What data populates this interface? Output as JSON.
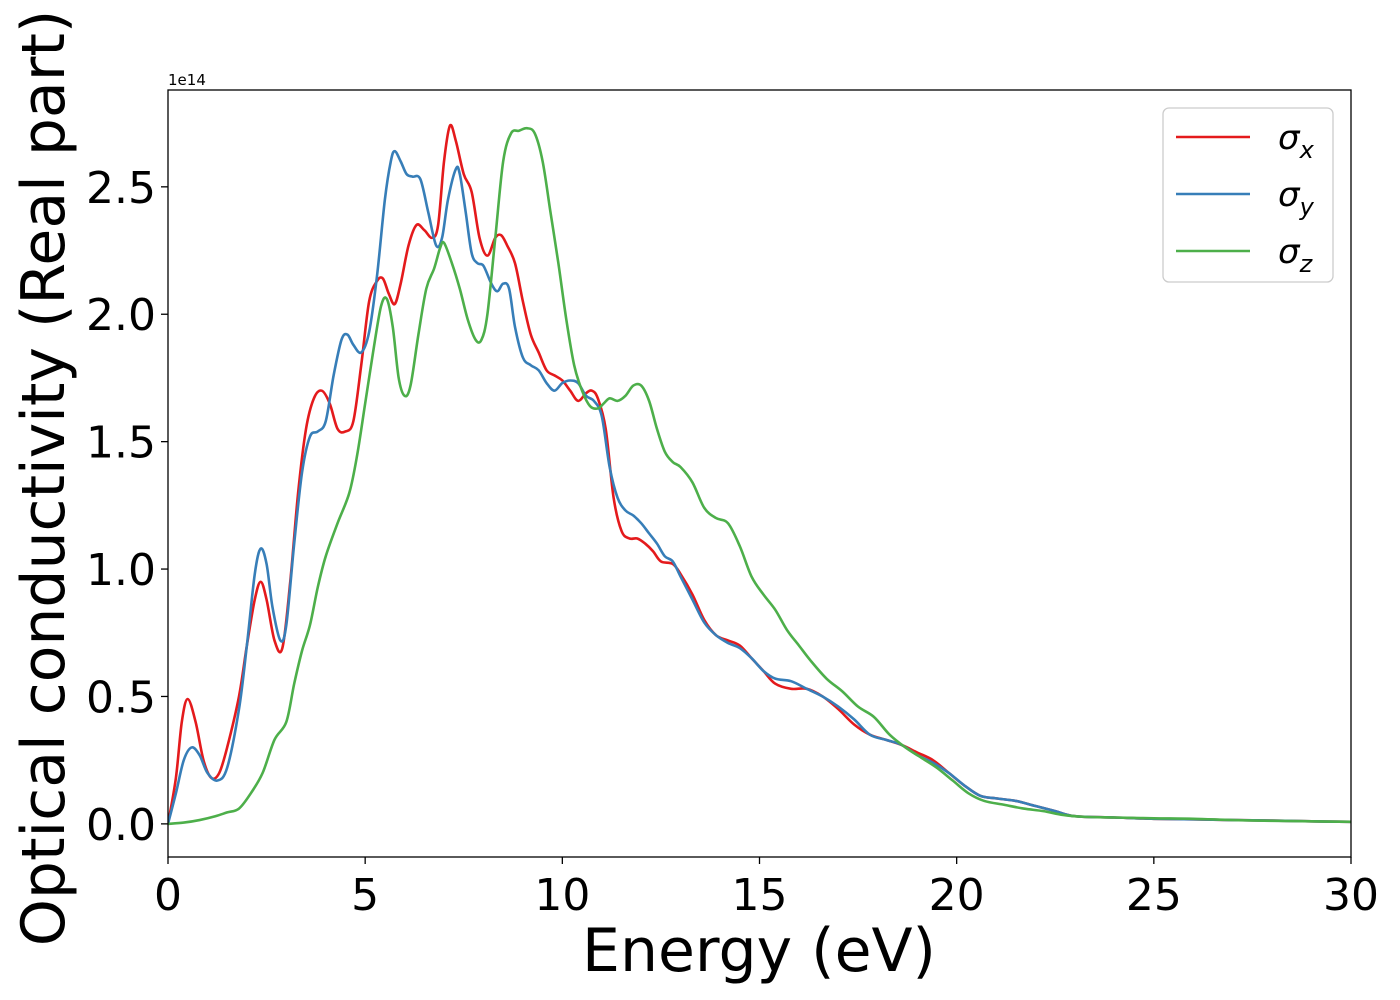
{
  "chart_data": {
    "type": "line",
    "title": "",
    "xlabel": "Energy (eV)",
    "ylabel": "Optical conductivity (Real part)",
    "y_offset_label": "1e14",
    "xlim": [
      0,
      30
    ],
    "ylim": [
      -0.13,
      2.88
    ],
    "xticks": [
      0,
      5,
      10,
      15,
      20,
      25,
      30
    ],
    "xtick_labels": [
      "0",
      "5",
      "10",
      "15",
      "20",
      "25",
      "30"
    ],
    "yticks": [
      0.0,
      0.5,
      1.0,
      1.5,
      2.0,
      2.5
    ],
    "ytick_labels": [
      "0.0",
      "0.5",
      "1.0",
      "1.5",
      "2.0",
      "2.5"
    ],
    "grid": false,
    "legend_position": "top-right",
    "series": [
      {
        "name": "σx",
        "symbol": "σ",
        "subscript": "x",
        "color": "#e41a1c",
        "points": [
          [
            0,
            0
          ],
          [
            0.2,
            0.18
          ],
          [
            0.35,
            0.4
          ],
          [
            0.5,
            0.49
          ],
          [
            0.7,
            0.4
          ],
          [
            0.9,
            0.25
          ],
          [
            1.1,
            0.18
          ],
          [
            1.3,
            0.2
          ],
          [
            1.5,
            0.3
          ],
          [
            1.8,
            0.5
          ],
          [
            2.0,
            0.7
          ],
          [
            2.2,
            0.88
          ],
          [
            2.35,
            0.95
          ],
          [
            2.5,
            0.88
          ],
          [
            2.7,
            0.72
          ],
          [
            2.9,
            0.69
          ],
          [
            3.1,
            0.95
          ],
          [
            3.3,
            1.3
          ],
          [
            3.5,
            1.55
          ],
          [
            3.7,
            1.67
          ],
          [
            3.9,
            1.7
          ],
          [
            4.1,
            1.65
          ],
          [
            4.3,
            1.55
          ],
          [
            4.5,
            1.54
          ],
          [
            4.7,
            1.58
          ],
          [
            4.9,
            1.8
          ],
          [
            5.1,
            2.05
          ],
          [
            5.3,
            2.13
          ],
          [
            5.45,
            2.14
          ],
          [
            5.6,
            2.08
          ],
          [
            5.75,
            2.04
          ],
          [
            5.9,
            2.12
          ],
          [
            6.1,
            2.27
          ],
          [
            6.3,
            2.35
          ],
          [
            6.5,
            2.33
          ],
          [
            6.7,
            2.3
          ],
          [
            6.85,
            2.35
          ],
          [
            7.0,
            2.6
          ],
          [
            7.15,
            2.74
          ],
          [
            7.3,
            2.68
          ],
          [
            7.5,
            2.55
          ],
          [
            7.7,
            2.48
          ],
          [
            7.9,
            2.3
          ],
          [
            8.1,
            2.23
          ],
          [
            8.3,
            2.3
          ],
          [
            8.45,
            2.31
          ],
          [
            8.6,
            2.27
          ],
          [
            8.8,
            2.2
          ],
          [
            9.0,
            2.05
          ],
          [
            9.2,
            1.92
          ],
          [
            9.4,
            1.85
          ],
          [
            9.6,
            1.78
          ],
          [
            9.8,
            1.76
          ],
          [
            10.0,
            1.74
          ],
          [
            10.2,
            1.7
          ],
          [
            10.4,
            1.66
          ],
          [
            10.6,
            1.69
          ],
          [
            10.75,
            1.7
          ],
          [
            10.9,
            1.67
          ],
          [
            11.1,
            1.55
          ],
          [
            11.3,
            1.28
          ],
          [
            11.5,
            1.15
          ],
          [
            11.7,
            1.12
          ],
          [
            11.9,
            1.12
          ],
          [
            12.1,
            1.1
          ],
          [
            12.3,
            1.07
          ],
          [
            12.5,
            1.03
          ],
          [
            12.8,
            1.02
          ],
          [
            13.0,
            0.98
          ],
          [
            13.3,
            0.9
          ],
          [
            13.6,
            0.8
          ],
          [
            13.9,
            0.74
          ],
          [
            14.2,
            0.72
          ],
          [
            14.5,
            0.7
          ],
          [
            14.8,
            0.65
          ],
          [
            15.1,
            0.6
          ],
          [
            15.4,
            0.55
          ],
          [
            15.8,
            0.53
          ],
          [
            16.2,
            0.53
          ],
          [
            16.6,
            0.5
          ],
          [
            17.0,
            0.45
          ],
          [
            17.4,
            0.39
          ],
          [
            17.8,
            0.35
          ],
          [
            18.2,
            0.33
          ],
          [
            18.6,
            0.31
          ],
          [
            19.0,
            0.28
          ],
          [
            19.4,
            0.25
          ],
          [
            19.8,
            0.2
          ],
          [
            20.2,
            0.15
          ],
          [
            20.6,
            0.11
          ],
          [
            21.0,
            0.1
          ],
          [
            21.5,
            0.09
          ],
          [
            22.0,
            0.07
          ],
          [
            22.5,
            0.05
          ],
          [
            23.0,
            0.03
          ],
          [
            24.0,
            0.025
          ],
          [
            25.0,
            0.02
          ],
          [
            26.0,
            0.018
          ],
          [
            27.0,
            0.015
          ],
          [
            28.0,
            0.013
          ],
          [
            29.0,
            0.01
          ],
          [
            30.0,
            0.008
          ]
        ]
      },
      {
        "name": "σy",
        "symbol": "σ",
        "subscript": "y",
        "color": "#377eb8",
        "points": [
          [
            0,
            0
          ],
          [
            0.2,
            0.12
          ],
          [
            0.4,
            0.25
          ],
          [
            0.6,
            0.3
          ],
          [
            0.8,
            0.27
          ],
          [
            1.0,
            0.2
          ],
          [
            1.25,
            0.17
          ],
          [
            1.5,
            0.22
          ],
          [
            1.8,
            0.45
          ],
          [
            2.0,
            0.7
          ],
          [
            2.2,
            0.98
          ],
          [
            2.35,
            1.08
          ],
          [
            2.5,
            1.02
          ],
          [
            2.65,
            0.85
          ],
          [
            2.85,
            0.72
          ],
          [
            3.0,
            0.78
          ],
          [
            3.2,
            1.1
          ],
          [
            3.4,
            1.38
          ],
          [
            3.6,
            1.52
          ],
          [
            3.8,
            1.54
          ],
          [
            4.0,
            1.58
          ],
          [
            4.2,
            1.76
          ],
          [
            4.4,
            1.9
          ],
          [
            4.55,
            1.92
          ],
          [
            4.7,
            1.88
          ],
          [
            4.9,
            1.85
          ],
          [
            5.1,
            1.93
          ],
          [
            5.3,
            2.15
          ],
          [
            5.5,
            2.45
          ],
          [
            5.65,
            2.6
          ],
          [
            5.75,
            2.64
          ],
          [
            5.9,
            2.6
          ],
          [
            6.05,
            2.55
          ],
          [
            6.2,
            2.54
          ],
          [
            6.4,
            2.53
          ],
          [
            6.6,
            2.4
          ],
          [
            6.8,
            2.27
          ],
          [
            6.95,
            2.3
          ],
          [
            7.1,
            2.45
          ],
          [
            7.3,
            2.57
          ],
          [
            7.4,
            2.55
          ],
          [
            7.55,
            2.4
          ],
          [
            7.7,
            2.24
          ],
          [
            7.85,
            2.2
          ],
          [
            8.0,
            2.19
          ],
          [
            8.2,
            2.12
          ],
          [
            8.35,
            2.09
          ],
          [
            8.5,
            2.12
          ],
          [
            8.65,
            2.1
          ],
          [
            8.8,
            1.95
          ],
          [
            9.0,
            1.83
          ],
          [
            9.2,
            1.8
          ],
          [
            9.4,
            1.78
          ],
          [
            9.6,
            1.73
          ],
          [
            9.8,
            1.7
          ],
          [
            10.0,
            1.73
          ],
          [
            10.2,
            1.74
          ],
          [
            10.4,
            1.73
          ],
          [
            10.6,
            1.68
          ],
          [
            10.8,
            1.66
          ],
          [
            11.0,
            1.6
          ],
          [
            11.2,
            1.4
          ],
          [
            11.4,
            1.28
          ],
          [
            11.6,
            1.23
          ],
          [
            11.8,
            1.21
          ],
          [
            12.0,
            1.18
          ],
          [
            12.2,
            1.14
          ],
          [
            12.4,
            1.1
          ],
          [
            12.6,
            1.05
          ],
          [
            12.8,
            1.03
          ],
          [
            13.0,
            0.97
          ],
          [
            13.3,
            0.88
          ],
          [
            13.6,
            0.79
          ],
          [
            13.9,
            0.74
          ],
          [
            14.2,
            0.71
          ],
          [
            14.5,
            0.69
          ],
          [
            14.8,
            0.65
          ],
          [
            15.1,
            0.6
          ],
          [
            15.4,
            0.57
          ],
          [
            15.8,
            0.56
          ],
          [
            16.2,
            0.53
          ],
          [
            16.6,
            0.5
          ],
          [
            17.0,
            0.46
          ],
          [
            17.4,
            0.41
          ],
          [
            17.8,
            0.35
          ],
          [
            18.2,
            0.33
          ],
          [
            18.6,
            0.31
          ],
          [
            19.0,
            0.27
          ],
          [
            19.4,
            0.24
          ],
          [
            19.8,
            0.2
          ],
          [
            20.2,
            0.15
          ],
          [
            20.6,
            0.11
          ],
          [
            21.0,
            0.1
          ],
          [
            21.5,
            0.09
          ],
          [
            22.0,
            0.07
          ],
          [
            22.5,
            0.05
          ],
          [
            23.0,
            0.03
          ],
          [
            24.0,
            0.025
          ],
          [
            25.0,
            0.02
          ],
          [
            26.0,
            0.018
          ],
          [
            27.0,
            0.015
          ],
          [
            28.0,
            0.013
          ],
          [
            29.0,
            0.01
          ],
          [
            30.0,
            0.008
          ]
        ]
      },
      {
        "name": "σz",
        "symbol": "σ",
        "subscript": "z",
        "color": "#4daf4a",
        "points": [
          [
            0,
            0
          ],
          [
            0.4,
            0.005
          ],
          [
            0.8,
            0.015
          ],
          [
            1.2,
            0.03
          ],
          [
            1.5,
            0.045
          ],
          [
            1.8,
            0.06
          ],
          [
            2.1,
            0.12
          ],
          [
            2.4,
            0.2
          ],
          [
            2.7,
            0.33
          ],
          [
            3.0,
            0.4
          ],
          [
            3.2,
            0.55
          ],
          [
            3.4,
            0.68
          ],
          [
            3.6,
            0.78
          ],
          [
            3.8,
            0.93
          ],
          [
            4.0,
            1.05
          ],
          [
            4.3,
            1.18
          ],
          [
            4.6,
            1.3
          ],
          [
            4.8,
            1.45
          ],
          [
            5.0,
            1.65
          ],
          [
            5.2,
            1.85
          ],
          [
            5.4,
            2.03
          ],
          [
            5.55,
            2.06
          ],
          [
            5.7,
            1.95
          ],
          [
            5.85,
            1.75
          ],
          [
            6.0,
            1.68
          ],
          [
            6.15,
            1.72
          ],
          [
            6.35,
            1.92
          ],
          [
            6.55,
            2.1
          ],
          [
            6.75,
            2.18
          ],
          [
            6.9,
            2.26
          ],
          [
            7.0,
            2.28
          ],
          [
            7.2,
            2.2
          ],
          [
            7.4,
            2.1
          ],
          [
            7.6,
            1.98
          ],
          [
            7.8,
            1.9
          ],
          [
            7.95,
            1.9
          ],
          [
            8.1,
            2.0
          ],
          [
            8.3,
            2.3
          ],
          [
            8.5,
            2.6
          ],
          [
            8.7,
            2.71
          ],
          [
            8.9,
            2.72
          ],
          [
            9.1,
            2.73
          ],
          [
            9.3,
            2.71
          ],
          [
            9.5,
            2.6
          ],
          [
            9.7,
            2.4
          ],
          [
            9.9,
            2.2
          ],
          [
            10.1,
            1.98
          ],
          [
            10.3,
            1.8
          ],
          [
            10.5,
            1.7
          ],
          [
            10.7,
            1.64
          ],
          [
            10.9,
            1.63
          ],
          [
            11.05,
            1.65
          ],
          [
            11.2,
            1.67
          ],
          [
            11.4,
            1.66
          ],
          [
            11.6,
            1.68
          ],
          [
            11.8,
            1.72
          ],
          [
            12.0,
            1.72
          ],
          [
            12.2,
            1.66
          ],
          [
            12.4,
            1.55
          ],
          [
            12.6,
            1.46
          ],
          [
            12.8,
            1.42
          ],
          [
            13.0,
            1.4
          ],
          [
            13.3,
            1.34
          ],
          [
            13.6,
            1.24
          ],
          [
            13.9,
            1.2
          ],
          [
            14.2,
            1.18
          ],
          [
            14.5,
            1.09
          ],
          [
            14.8,
            0.97
          ],
          [
            15.1,
            0.9
          ],
          [
            15.4,
            0.84
          ],
          [
            15.7,
            0.76
          ],
          [
            16.0,
            0.7
          ],
          [
            16.3,
            0.64
          ],
          [
            16.7,
            0.57
          ],
          [
            17.1,
            0.52
          ],
          [
            17.5,
            0.46
          ],
          [
            17.9,
            0.42
          ],
          [
            18.3,
            0.35
          ],
          [
            18.7,
            0.3
          ],
          [
            19.1,
            0.26
          ],
          [
            19.5,
            0.22
          ],
          [
            19.9,
            0.17
          ],
          [
            20.3,
            0.12
          ],
          [
            20.7,
            0.09
          ],
          [
            21.2,
            0.075
          ],
          [
            21.7,
            0.06
          ],
          [
            22.2,
            0.05
          ],
          [
            22.7,
            0.035
          ],
          [
            23.2,
            0.028
          ],
          [
            24.0,
            0.025
          ],
          [
            25.0,
            0.022
          ],
          [
            26.0,
            0.02
          ],
          [
            27.0,
            0.015
          ],
          [
            28.0,
            0.012
          ],
          [
            29.0,
            0.01
          ],
          [
            30.0,
            0.008
          ]
        ]
      }
    ]
  }
}
